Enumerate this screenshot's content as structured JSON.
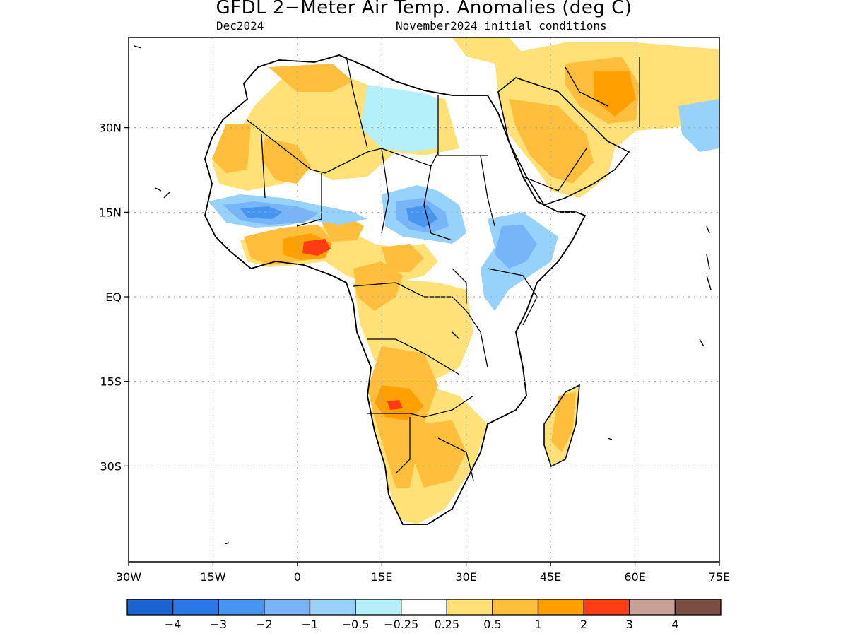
{
  "title": "GFDL 2−Meter Air Temp. Anomalies (deg C)",
  "subtitle_left": "Dec2024",
  "subtitle_right": "November2024 initial conditions",
  "map": {
    "lon_range": [
      -30,
      75
    ],
    "lat_range": [
      -47,
      46
    ],
    "lat_ticks": [
      {
        "value": 30,
        "label": "30N"
      },
      {
        "value": 15,
        "label": "15N"
      },
      {
        "value": 0,
        "label": "EQ"
      },
      {
        "value": -15,
        "label": "15S"
      },
      {
        "value": -30,
        "label": "30S"
      }
    ],
    "lon_ticks": [
      {
        "value": -30,
        "label": "30W"
      },
      {
        "value": -15,
        "label": "15W"
      },
      {
        "value": 0,
        "label": "0"
      },
      {
        "value": 15,
        "label": "15E"
      },
      {
        "value": 30,
        "label": "30E"
      },
      {
        "value": 45,
        "label": "45E"
      },
      {
        "value": 60,
        "label": "60E"
      },
      {
        "value": 75,
        "label": "75E"
      }
    ],
    "grid": true
  },
  "colorbar": {
    "colors": [
      "#1a64d2",
      "#2a78e8",
      "#4696f0",
      "#78b4f8",
      "#96d2fa",
      "#b4f0fa",
      "#ffffff",
      "#ffe178",
      "#ffbe3c",
      "#ffa000",
      "#ff3c14",
      "#c8a096",
      "#7a4e42"
    ],
    "labels": [
      "−4",
      "−3",
      "−2",
      "−1",
      "−0.5",
      "−0.25",
      "0.25",
      "0.5",
      "1",
      "2",
      "3",
      "4"
    ]
  },
  "colors": {
    "land_outline": "#000000",
    "grid": "#aaaaaa"
  }
}
